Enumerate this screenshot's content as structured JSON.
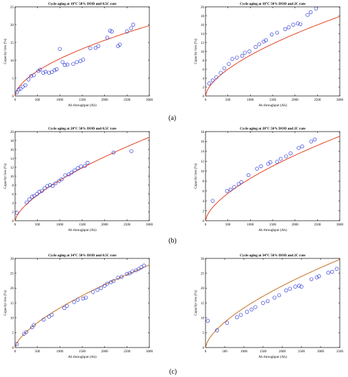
{
  "captions": [
    "(a)",
    "(b)",
    "(c)"
  ],
  "colors": {
    "fit": "#e2401f",
    "fit_c": "#c46a1a",
    "marker": "#2f3bd6",
    "axis": "#000000"
  },
  "chart_data": [
    {
      "type": "scatter",
      "title": "Cycle aging at 10°C 50% DOD and 0.5C rate",
      "xlabel": "Ah throughput (Ah)",
      "ylabel": "Capacity loss (%)",
      "xlim": [
        0,
        3000
      ],
      "ylim": [
        0,
        25
      ],
      "xticks": [
        0,
        500,
        1000,
        1500,
        2000,
        2500,
        3000
      ],
      "yticks": [
        0,
        5,
        10,
        15,
        20,
        25
      ],
      "grid": false,
      "fit": {
        "a": 0.19,
        "b": 0.58
      },
      "x": [
        40,
        80,
        120,
        170,
        230,
        300,
        360,
        420,
        520,
        560,
        630,
        680,
        760,
        820,
        880,
        930,
        1000,
        1060,
        1110,
        1170,
        1300,
        1380,
        1460,
        1520,
        1680,
        1800,
        1860,
        2060,
        2120,
        2160,
        2300,
        2340,
        2500,
        2590,
        2640
      ],
      "y": [
        1,
        1.8,
        2,
        2.6,
        3,
        4.6,
        5.6,
        5.8,
        7,
        7.4,
        6.5,
        6.8,
        6.5,
        6.7,
        7.2,
        7.5,
        13.2,
        9.5,
        8.7,
        8.8,
        9,
        9.5,
        9.8,
        10.2,
        13.4,
        13.5,
        14,
        16.4,
        18.3,
        18.1,
        14,
        14.4,
        18.1,
        19,
        20
      ]
    },
    {
      "type": "scatter",
      "title": "Cycle aging at 10°C 50% DOD and 2C rate",
      "xlabel": "Ah throughput (Ah)",
      "ylabel": "Capacity loss (%)",
      "xlim": [
        0,
        3000
      ],
      "ylim": [
        0,
        20
      ],
      "xticks": [
        0,
        500,
        1000,
        1500,
        2000,
        2500,
        3000
      ],
      "yticks": [
        0,
        2,
        4,
        6,
        8,
        10,
        12,
        14,
        16,
        18,
        20
      ],
      "grid": false,
      "fit": {
        "a": 0.135,
        "b": 0.61
      },
      "x": [
        80,
        160,
        240,
        340,
        420,
        520,
        600,
        700,
        820,
        880,
        980,
        1120,
        1200,
        1300,
        1350,
        1480,
        1600,
        1780,
        1860,
        1960,
        2060,
        2120,
        2280,
        2350,
        2470
      ],
      "y": [
        2.8,
        3.5,
        4.2,
        5.2,
        6.2,
        7.2,
        8.3,
        8.6,
        9,
        9.7,
        10,
        11,
        11.6,
        12.2,
        12.5,
        13.8,
        14.2,
        15,
        15.4,
        16,
        16.3,
        16.1,
        18.2,
        18.8,
        19.6
      ]
    },
    {
      "type": "scatter",
      "title": "Cycle aging at 20°C 50% DOD and 0.5C rate",
      "xlabel": "Ah throughput (Ah)",
      "ylabel": "Capacity loss (%)",
      "xlim": [
        0,
        3000
      ],
      "ylim": [
        0,
        20
      ],
      "xticks": [
        0,
        500,
        1000,
        1500,
        2000,
        2500,
        3000
      ],
      "yticks": [
        0,
        2,
        4,
        6,
        8,
        10,
        12,
        14,
        16,
        18,
        20
      ],
      "grid": false,
      "fit": {
        "a": 0.095,
        "b": 0.66
      },
      "x": [
        40,
        260,
        320,
        380,
        430,
        490,
        540,
        600,
        660,
        720,
        780,
        840,
        900,
        980,
        1040,
        1120,
        1200,
        1260,
        1330,
        1400,
        1470,
        1560,
        1620,
        2200,
        2600
      ],
      "y": [
        1.8,
        4.1,
        4.8,
        5.4,
        5.6,
        6,
        6.5,
        6.7,
        7.3,
        7.8,
        8,
        7.8,
        8.4,
        8.9,
        9.3,
        10.2,
        10.4,
        10.8,
        11.3,
        11.8,
        12.2,
        12.3,
        13,
        15.3,
        15.6
      ]
    },
    {
      "type": "scatter",
      "title": "Cycle aging at 20°C 50% DOD and 2C rate",
      "xlabel": "Ah throughput (Ah)",
      "ylabel": "Capacity loss (%)",
      "xlim": [
        0,
        3000
      ],
      "ylim": [
        0,
        18
      ],
      "xticks": [
        0,
        500,
        1000,
        1500,
        2000,
        2500,
        3000
      ],
      "yticks": [
        0,
        2,
        4,
        6,
        8,
        10,
        12,
        14,
        16,
        18
      ],
      "grid": false,
      "fit": {
        "a": 0.11,
        "b": 0.63
      },
      "x": [
        160,
        480,
        560,
        640,
        740,
        800,
        960,
        1150,
        1240,
        1400,
        1450,
        1600,
        1680,
        1800,
        1900,
        2080,
        2160,
        2360,
        2440
      ],
      "y": [
        4,
        6,
        6.3,
        6.8,
        7.4,
        7.8,
        9.2,
        10.5,
        11,
        11.5,
        11.8,
        11.9,
        12.5,
        13,
        13.6,
        14.7,
        15,
        16,
        16.4
      ]
    },
    {
      "type": "scatter",
      "title": "Cycle aging at 34°C 50% DOD and 0.5C rate",
      "xlabel": "Ah throughput (Ah)",
      "ylabel": "Capacity loss (%)",
      "xlim": [
        0,
        3000
      ],
      "ylim": [
        0,
        30
      ],
      "xticks": [
        0,
        500,
        1000,
        1500,
        2000,
        2500,
        3000
      ],
      "yticks": [
        0,
        5,
        10,
        15,
        20,
        25,
        30
      ],
      "grid": false,
      "fit": {
        "a": 0.13,
        "b": 0.67
      },
      "x": [
        40,
        200,
        250,
        380,
        420,
        640,
        760,
        820,
        1100,
        1160,
        1320,
        1400,
        1520,
        1580,
        1740,
        1840,
        1920,
        2000,
        2060,
        2140,
        2200,
        2300,
        2380,
        2500,
        2560,
        2620,
        2700,
        2760,
        2820,
        2880
      ],
      "y": [
        1.2,
        4.6,
        5.2,
        6.8,
        7.6,
        9.4,
        10.4,
        11,
        13.3,
        14,
        15.3,
        16.1,
        16.5,
        16.8,
        18.7,
        19.4,
        20,
        20.8,
        21.5,
        22,
        22.4,
        23.5,
        23.8,
        24.8,
        25,
        25.6,
        26,
        26.4,
        27,
        27.6
      ]
    },
    {
      "type": "scatter",
      "title": "Cycle aging at 34°C 50% DOD and 2C rate",
      "xlabel": "Ah throughput (Ah)",
      "ylabel": "Capacity loss (%)",
      "xlim": [
        0,
        3500
      ],
      "ylim": [
        0,
        30
      ],
      "xticks": [
        0,
        500,
        1000,
        1500,
        2000,
        2500,
        3000,
        3500
      ],
      "yticks": [
        0,
        5,
        10,
        15,
        20,
        25,
        30
      ],
      "grid": false,
      "fit": {
        "a": 0.16,
        "b": 0.64
      },
      "x": [
        60,
        300,
        560,
        820,
        920,
        1080,
        1200,
        1300,
        1500,
        1620,
        1800,
        1920,
        2100,
        2200,
        2340,
        2440,
        2500,
        2760,
        2900,
        2960,
        3200,
        3300,
        3420
      ],
      "y": [
        9,
        5.8,
        8.3,
        10.2,
        11,
        12,
        12.8,
        13.6,
        15,
        15.6,
        16.8,
        17.6,
        19.2,
        19.8,
        20.5,
        20.8,
        20.5,
        23,
        23.6,
        24,
        25.2,
        25.5,
        26.5
      ]
    }
  ]
}
